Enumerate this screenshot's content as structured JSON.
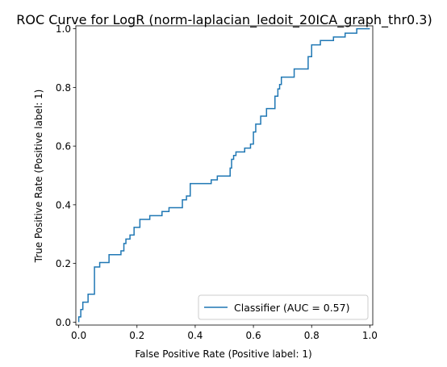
{
  "chart_data": {
    "type": "line",
    "title": "ROC Curve for LogR (norm-laplacian_ledoit_20ICA_graph_thr0.3)",
    "xlabel": "False Positive Rate (Positive label: 1)",
    "ylabel": "True Positive Rate (Positive label: 1)",
    "xlim": [
      -0.01,
      1.01
    ],
    "ylim": [
      -0.01,
      1.01
    ],
    "xticks": [
      "0.0",
      "0.2",
      "0.4",
      "0.6",
      "0.8",
      "1.0"
    ],
    "yticks": [
      "0.0",
      "0.2",
      "0.4",
      "0.6",
      "0.8",
      "1.0"
    ],
    "grid": false,
    "legend_position": "lower-right",
    "colors": {
      "series": "#1f77b4"
    },
    "series": [
      {
        "name": "Classifier (AUC = 0.57)",
        "points": [
          [
            0.0,
            0.0
          ],
          [
            0.0,
            0.018
          ],
          [
            0.007,
            0.018
          ],
          [
            0.007,
            0.043
          ],
          [
            0.014,
            0.043
          ],
          [
            0.014,
            0.068
          ],
          [
            0.032,
            0.068
          ],
          [
            0.032,
            0.095
          ],
          [
            0.054,
            0.095
          ],
          [
            0.054,
            0.188
          ],
          [
            0.072,
            0.188
          ],
          [
            0.072,
            0.203
          ],
          [
            0.104,
            0.203
          ],
          [
            0.104,
            0.23
          ],
          [
            0.145,
            0.23
          ],
          [
            0.145,
            0.243
          ],
          [
            0.155,
            0.243
          ],
          [
            0.155,
            0.268
          ],
          [
            0.162,
            0.268
          ],
          [
            0.162,
            0.283
          ],
          [
            0.176,
            0.283
          ],
          [
            0.176,
            0.297
          ],
          [
            0.19,
            0.297
          ],
          [
            0.19,
            0.323
          ],
          [
            0.21,
            0.323
          ],
          [
            0.21,
            0.35
          ],
          [
            0.244,
            0.35
          ],
          [
            0.244,
            0.363
          ],
          [
            0.286,
            0.363
          ],
          [
            0.286,
            0.377
          ],
          [
            0.31,
            0.377
          ],
          [
            0.31,
            0.39
          ],
          [
            0.356,
            0.39
          ],
          [
            0.356,
            0.417
          ],
          [
            0.37,
            0.417
          ],
          [
            0.37,
            0.43
          ],
          [
            0.383,
            0.43
          ],
          [
            0.383,
            0.472
          ],
          [
            0.455,
            0.472
          ],
          [
            0.455,
            0.485
          ],
          [
            0.476,
            0.485
          ],
          [
            0.476,
            0.498
          ],
          [
            0.52,
            0.498
          ],
          [
            0.52,
            0.525
          ],
          [
            0.525,
            0.525
          ],
          [
            0.525,
            0.555
          ],
          [
            0.532,
            0.555
          ],
          [
            0.532,
            0.568
          ],
          [
            0.54,
            0.568
          ],
          [
            0.54,
            0.58
          ],
          [
            0.57,
            0.58
          ],
          [
            0.57,
            0.593
          ],
          [
            0.59,
            0.593
          ],
          [
            0.59,
            0.607
          ],
          [
            0.6,
            0.607
          ],
          [
            0.6,
            0.648
          ],
          [
            0.608,
            0.648
          ],
          [
            0.608,
            0.675
          ],
          [
            0.625,
            0.675
          ],
          [
            0.625,
            0.702
          ],
          [
            0.645,
            0.702
          ],
          [
            0.645,
            0.728
          ],
          [
            0.674,
            0.728
          ],
          [
            0.674,
            0.77
          ],
          [
            0.684,
            0.77
          ],
          [
            0.684,
            0.795
          ],
          [
            0.69,
            0.795
          ],
          [
            0.69,
            0.81
          ],
          [
            0.696,
            0.81
          ],
          [
            0.696,
            0.835
          ],
          [
            0.74,
            0.835
          ],
          [
            0.74,
            0.863
          ],
          [
            0.788,
            0.863
          ],
          [
            0.788,
            0.905
          ],
          [
            0.8,
            0.905
          ],
          [
            0.8,
            0.945
          ],
          [
            0.83,
            0.945
          ],
          [
            0.83,
            0.96
          ],
          [
            0.875,
            0.96
          ],
          [
            0.875,
            0.972
          ],
          [
            0.915,
            0.972
          ],
          [
            0.915,
            0.985
          ],
          [
            0.955,
            0.985
          ],
          [
            0.955,
            1.0
          ],
          [
            1.0,
            1.0
          ]
        ]
      }
    ]
  }
}
